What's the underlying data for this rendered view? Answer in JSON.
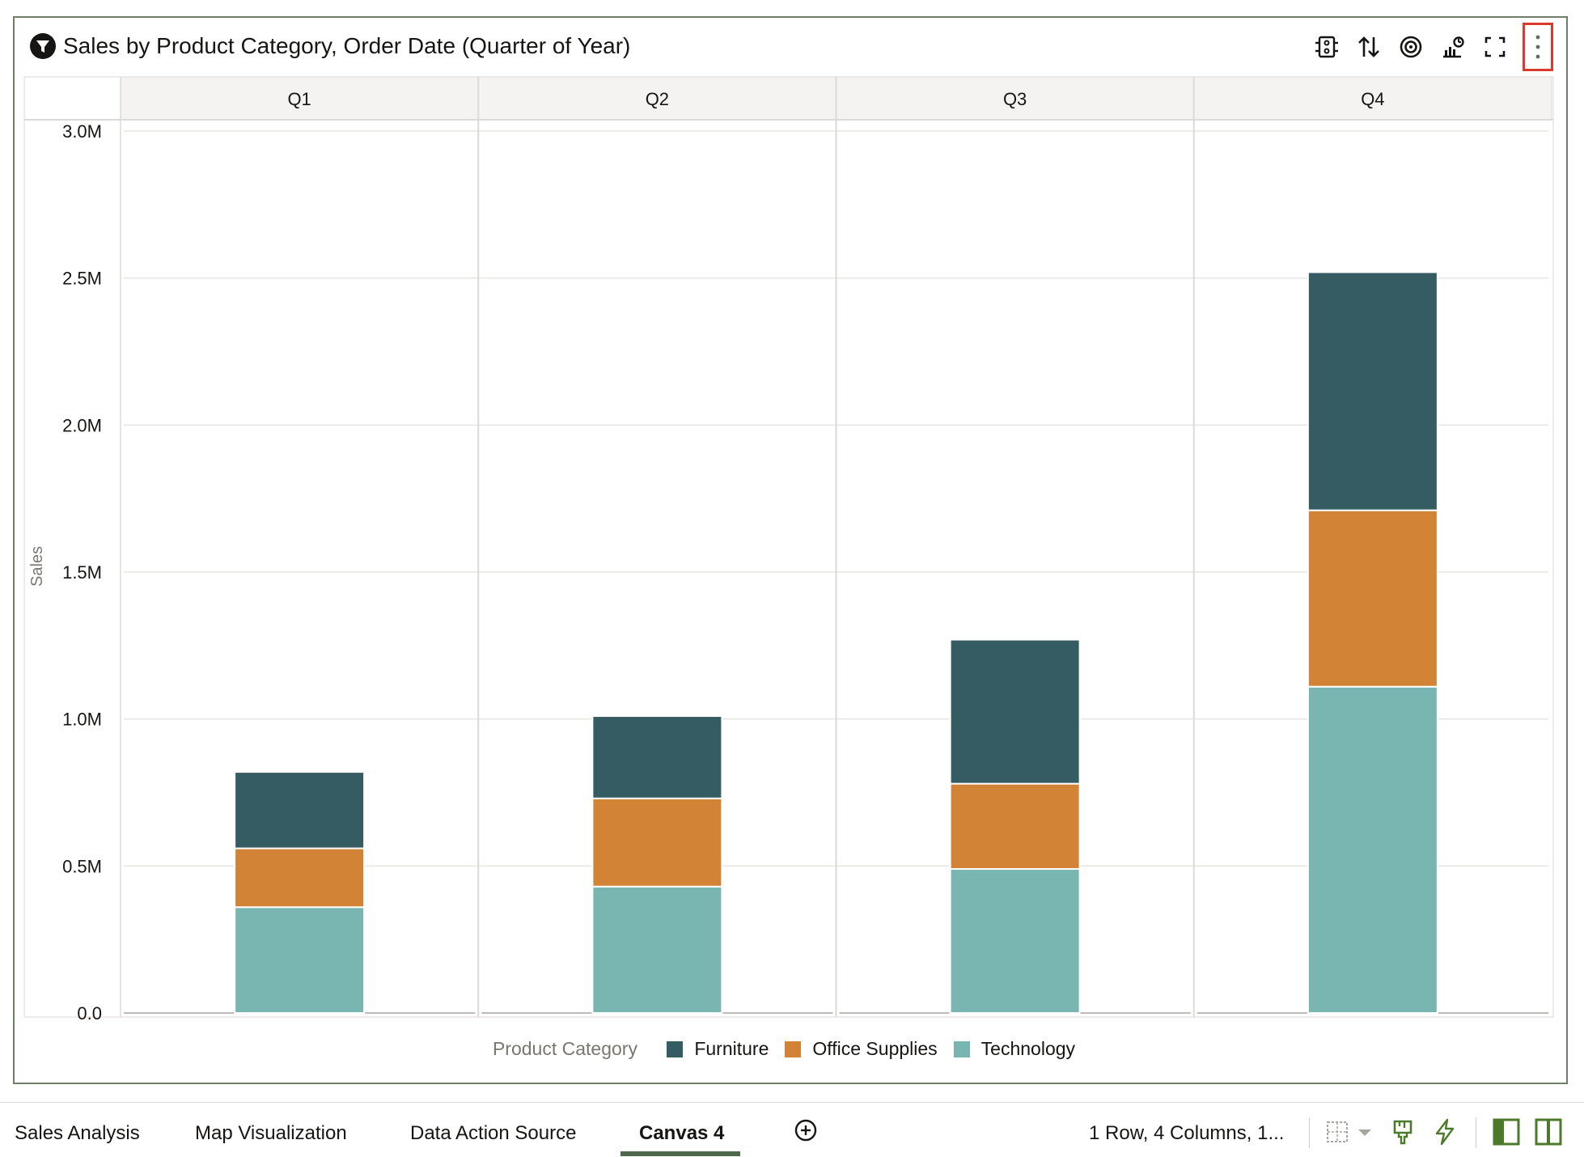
{
  "header": {
    "title": "Sales by Product Category, Order Date (Quarter of Year)",
    "filter_icon": "filter-icon",
    "tools": [
      {
        "name": "filter-settings-icon"
      },
      {
        "name": "sort-icon"
      },
      {
        "name": "target-icon"
      },
      {
        "name": "chart-type-icon"
      },
      {
        "name": "maximize-icon"
      },
      {
        "name": "more-options-icon"
      }
    ]
  },
  "chart_data": {
    "type": "bar",
    "stacked": true,
    "title": "Sales by Product Category, Order Date (Quarter of Year)",
    "categories": [
      "Q1",
      "Q2",
      "Q3",
      "Q4"
    ],
    "ylabel": "Sales",
    "ylim": [
      0,
      3000000
    ],
    "y_ticks": [
      0,
      500000,
      1000000,
      1500000,
      2000000,
      2500000,
      3000000
    ],
    "y_tick_labels": [
      "0.0",
      "0.5M",
      "1.0M",
      "1.5M",
      "2.0M",
      "2.5M",
      "3.0M"
    ],
    "grid": true,
    "legend_title": "Product Category",
    "legend_position": "bottom",
    "series": [
      {
        "name": "Technology",
        "color": "#79b6b2",
        "values": [
          360000,
          430000,
          490000,
          1110000
        ]
      },
      {
        "name": "Office Supplies",
        "color": "#d28336",
        "values": [
          200000,
          300000,
          290000,
          600000
        ]
      },
      {
        "name": "Furniture",
        "color": "#365c63",
        "values": [
          260000,
          280000,
          490000,
          810000
        ]
      }
    ],
    "legend_order": [
      "Furniture",
      "Office Supplies",
      "Technology"
    ]
  },
  "tabs": [
    {
      "label": "Sales Analysis",
      "active": false
    },
    {
      "label": "Map Visualization",
      "active": false
    },
    {
      "label": "Data Action Source",
      "active": false
    },
    {
      "label": "Canvas 4",
      "active": true
    }
  ],
  "status": {
    "layout_text": "1 Row, 4 Columns, 1..."
  },
  "colors": {
    "accent": "#4d6b4a",
    "highlight_border": "#d93a2b"
  }
}
